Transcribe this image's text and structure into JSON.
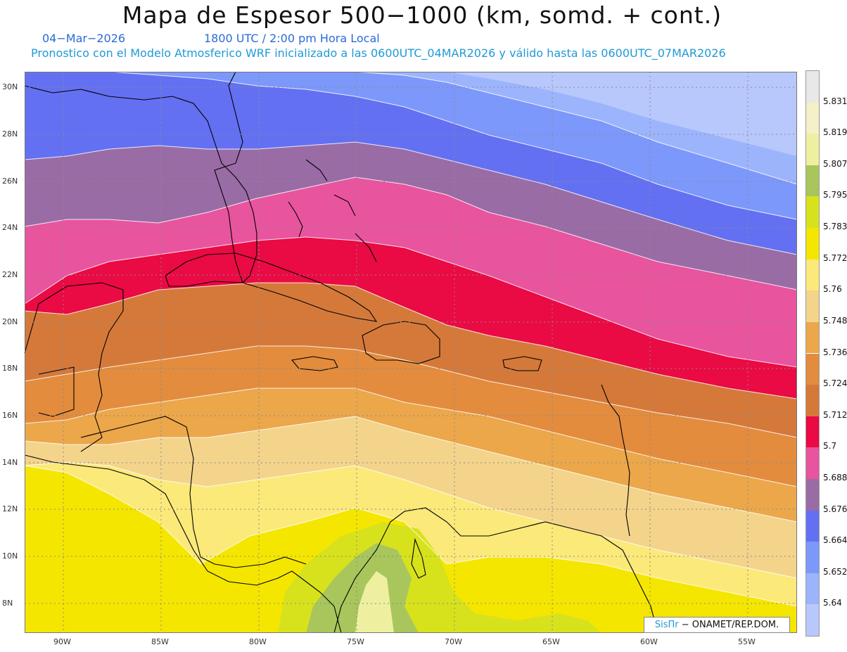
{
  "header": {
    "title": "Mapa de Espesor 500−1000 (km, somd. + cont.)",
    "date": "04−Mar−2026",
    "time": "1800 UTC / 2:00 pm Hora Local",
    "model_info": "Pronostico con el Modelo Atmosferico WRF inicializado a las 0600UTC_04MAR2026 y válido hasta las  0600UTC_07MAR2026"
  },
  "axes": {
    "longitude_labels": [
      "90W",
      "85W",
      "80W",
      "75W",
      "70W",
      "65W",
      "60W",
      "55W"
    ],
    "latitude_labels": [
      "30N",
      "28N",
      "26N",
      "24N",
      "22N",
      "20N",
      "18N",
      "16N",
      "14N",
      "12N",
      "10N",
      "8N"
    ]
  },
  "legend": {
    "levels": [
      {
        "value": "5.831",
        "color": "#f5f0c8"
      },
      {
        "value": "5.819",
        "color": "#eef0a0"
      },
      {
        "value": "5.807",
        "color": "#a8c65c"
      },
      {
        "value": "5.795",
        "color": "#d8e21c"
      },
      {
        "value": "5.783",
        "color": "#f5e600"
      },
      {
        "value": "5.772",
        "color": "#fbe97a"
      },
      {
        "value": "5.76",
        "color": "#f3d48a"
      },
      {
        "value": "5.748",
        "color": "#eca74a"
      },
      {
        "value": "5.736",
        "color": "#e38c3e"
      },
      {
        "value": "5.724",
        "color": "#d5793a"
      },
      {
        "value": "5.712",
        "color": "#ea0a44"
      },
      {
        "value": "5.7",
        "color": "#e8549e"
      },
      {
        "value": "5.688",
        "color": "#9a6ca6"
      },
      {
        "value": "5.676",
        "color": "#6470f2"
      },
      {
        "value": "5.664",
        "color": "#7c98fb"
      },
      {
        "value": "5.652",
        "color": "#9cb4fc"
      },
      {
        "value": "5.64",
        "color": "#b8c8fd"
      }
    ],
    "top_color": "#e8e8e8"
  },
  "credit": {
    "brand": "SisПr",
    "text": " − ONAMET/REP.DOM."
  }
}
